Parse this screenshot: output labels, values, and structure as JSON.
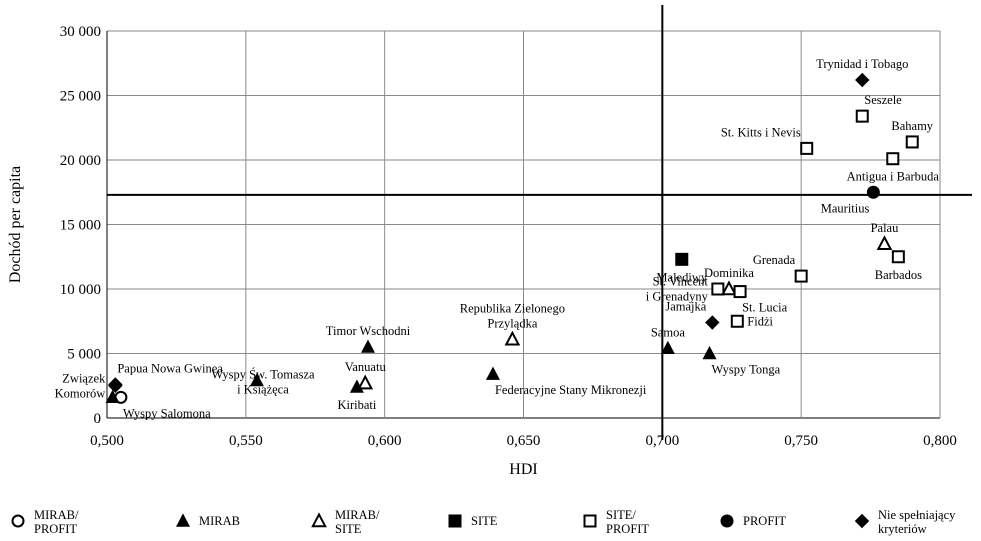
{
  "chart_data": {
    "type": "scatter",
    "title": "",
    "xlabel": "HDI",
    "ylabel": "Dochód per capita",
    "xlim": [
      0.5,
      0.8
    ],
    "ylim": [
      0,
      30000
    ],
    "x_ticks": [
      "0,500",
      "0,550",
      "0,600",
      "0,650",
      "0,700",
      "0,750",
      "0,800"
    ],
    "y_ticks": [
      "0",
      "5 000",
      "10 000",
      "15 000",
      "20 000",
      "25 000",
      "30 000"
    ],
    "grid": true,
    "reference_lines": {
      "vertical_x": 0.7,
      "horizontal_y": 17300
    },
    "legend_position": "bottom",
    "categories": [
      {
        "id": "mirab_profit",
        "label": [
          "MIRAB/",
          "PROFIT"
        ],
        "marker": "circle-open"
      },
      {
        "id": "mirab",
        "label": [
          "MIRAB"
        ],
        "marker": "triangle-filled"
      },
      {
        "id": "mirab_site",
        "label": [
          "MIRAB/",
          "SITE"
        ],
        "marker": "triangle-open"
      },
      {
        "id": "site",
        "label": [
          "SITE"
        ],
        "marker": "square-filled"
      },
      {
        "id": "site_profit",
        "label": [
          "SITE/",
          "PROFIT"
        ],
        "marker": "square-open"
      },
      {
        "id": "profit",
        "label": [
          "PROFIT"
        ],
        "marker": "circle-filled"
      },
      {
        "id": "none",
        "label": [
          "Nie spełniający",
          "kryteriów"
        ],
        "marker": "diamond-filled"
      }
    ],
    "points": [
      {
        "label": [
          "Związek",
          "Komorów"
        ],
        "x": 0.503,
        "y": 2500,
        "cat": "none",
        "lpos": "left"
      },
      {
        "label": [
          "Papua Nowa Gwinea"
        ],
        "x": 0.503,
        "y": 2600,
        "cat": "none",
        "lpos": "above-right"
      },
      {
        "label": [
          "Wyspy Salomona"
        ],
        "x": 0.505,
        "y": 1600,
        "cat": "mirab_profit",
        "lpos": "below-right"
      },
      {
        "label": [],
        "x": 0.502,
        "y": 1600,
        "cat": "mirab",
        "lpos": "none"
      },
      {
        "label": [
          "Wyspy Św. Tomasza",
          "i Książęca"
        ],
        "x": 0.554,
        "y": 2900,
        "cat": "mirab",
        "lpos": "below-left"
      },
      {
        "label": [
          "Kiribati"
        ],
        "x": 0.59,
        "y": 2400,
        "cat": "mirab",
        "lpos": "below"
      },
      {
        "label": [
          "Vanuatu"
        ],
        "x": 0.593,
        "y": 2700,
        "cat": "mirab_site",
        "lpos": "above"
      },
      {
        "label": [
          "Timor Wschodni"
        ],
        "x": 0.594,
        "y": 5500,
        "cat": "mirab",
        "lpos": "above"
      },
      {
        "label": [
          "Federacyjne Stany Mikronezji"
        ],
        "x": 0.639,
        "y": 3400,
        "cat": "mirab",
        "lpos": "below-right"
      },
      {
        "label": [
          "Republika Zielonego",
          "Przylądka"
        ],
        "x": 0.646,
        "y": 6100,
        "cat": "mirab_site",
        "lpos": "above"
      },
      {
        "label": [
          "Samoa"
        ],
        "x": 0.702,
        "y": 5400,
        "cat": "mirab",
        "lpos": "above"
      },
      {
        "label": [
          "Wyspy Tonga"
        ],
        "x": 0.717,
        "y": 5000,
        "cat": "mirab",
        "lpos": "below-right"
      },
      {
        "label": [
          "Jamajka"
        ],
        "x": 0.718,
        "y": 7400,
        "cat": "none",
        "lpos": "above-left"
      },
      {
        "label": [
          "Fidżi"
        ],
        "x": 0.727,
        "y": 7500,
        "cat": "site_profit",
        "lpos": "right"
      },
      {
        "label": [
          "Malediwy"
        ],
        "x": 0.707,
        "y": 12300,
        "cat": "site",
        "lpos": "below"
      },
      {
        "label": [
          "St. Vincent",
          "i Grenadyny"
        ],
        "x": 0.72,
        "y": 10000,
        "cat": "site_profit",
        "lpos": "left"
      },
      {
        "label": [
          "Dominika"
        ],
        "x": 0.724,
        "y": 10000,
        "cat": "mirab_site",
        "lpos": "above"
      },
      {
        "label": [
          "St. Lucia"
        ],
        "x": 0.728,
        "y": 9800,
        "cat": "site_profit",
        "lpos": "below-right"
      },
      {
        "label": [
          "Grenada"
        ],
        "x": 0.75,
        "y": 11000,
        "cat": "site_profit",
        "lpos": "above-left"
      },
      {
        "label": [
          "St. Kitts i Nevis"
        ],
        "x": 0.752,
        "y": 20900,
        "cat": "site_profit",
        "lpos": "above-left"
      },
      {
        "label": [
          "Trynidad i Tobago"
        ],
        "x": 0.772,
        "y": 26200,
        "cat": "none",
        "lpos": "above"
      },
      {
        "label": [
          "Seszele"
        ],
        "x": 0.772,
        "y": 23400,
        "cat": "site_profit",
        "lpos": "above-right"
      },
      {
        "label": [
          "Bahamy"
        ],
        "x": 0.79,
        "y": 21400,
        "cat": "site_profit",
        "lpos": "above"
      },
      {
        "label": [
          "Antigua i Barbuda"
        ],
        "x": 0.783,
        "y": 20100,
        "cat": "site_profit",
        "lpos": "below"
      },
      {
        "label": [
          "Mauritius"
        ],
        "x": 0.776,
        "y": 17500,
        "cat": "profit",
        "lpos": "below-left"
      },
      {
        "label": [
          "Palau"
        ],
        "x": 0.78,
        "y": 13500,
        "cat": "mirab_site",
        "lpos": "above"
      },
      {
        "label": [
          "Barbados"
        ],
        "x": 0.785,
        "y": 12500,
        "cat": "site_profit",
        "lpos": "below"
      }
    ]
  }
}
